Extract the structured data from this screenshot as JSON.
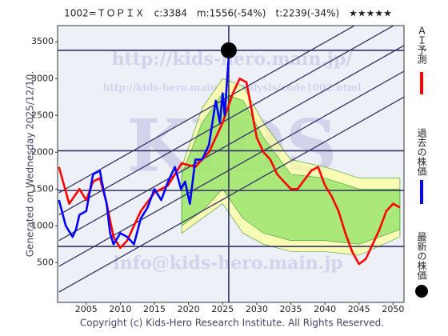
{
  "chart_data": {
    "type": "line",
    "title": "1002=ＴＯＰＩＸ　c:3384　m:1556(-54%)　t:2239(-34%)　★★★★★",
    "subtitle": "Generated on Wednesday 2025/12/10.",
    "footer": "Copyright (c) Kids-Hero Research Institute. All Rights Reserved.",
    "watermarks": [
      "http://kids-hero.main.jp/",
      "http://kids-hero.main.jp/analysis/code1002.html",
      "info@kids-hero.main.jp",
      "KIDS"
    ],
    "xlim": [
      2000.8,
      2051.6
    ],
    "ylim": [
      -40,
      3720
    ],
    "xticks": [
      2005,
      2010,
      2015,
      2020,
      2025,
      2030,
      2035,
      2040,
      2045,
      2050
    ],
    "yticks": [
      500,
      1000,
      1500,
      2000,
      2500,
      3000,
      3500
    ],
    "series": [
      {
        "name": "ＡＩ予測",
        "color": "#ff0000",
        "x": [
          2001,
          2002.5,
          2004,
          2005,
          2006,
          2007,
          2008,
          2009,
          2010,
          2011,
          2012,
          2013,
          2015,
          2017,
          2019,
          2021,
          2023,
          2025,
          2026.5,
          2027.5,
          2028.5,
          2030,
          2031,
          2032,
          2033,
          2035,
          2036,
          2038,
          2039,
          2040,
          2041,
          2042,
          2043,
          2044,
          2045,
          2046,
          2047,
          2048,
          2049,
          2050,
          2051
        ],
        "values": [
          1800,
          1300,
          1500,
          1350,
          1600,
          1650,
          1300,
          850,
          700,
          800,
          1000,
          1200,
          1450,
          1550,
          1850,
          1800,
          2000,
          2400,
          2800,
          3000,
          2950,
          2200,
          2000,
          1900,
          1700,
          1500,
          1500,
          1750,
          1800,
          1550,
          1400,
          1200,
          900,
          650,
          480,
          550,
          750,
          950,
          1200,
          1300,
          1250
        ]
      },
      {
        "name": "過去の株価",
        "color": "#0000ff",
        "x": [
          2001,
          2002,
          2003,
          2003.5,
          2004,
          2005,
          2006,
          2007,
          2007.5,
          2008,
          2008.5,
          2009,
          2010,
          2011,
          2012,
          2013,
          2014,
          2015,
          2016,
          2017,
          2018,
          2018.9,
          2019.5,
          2020.2,
          2021,
          2022,
          2023,
          2024,
          2024.6,
          2025,
          2025.3,
          2025.9
        ],
        "values": [
          1350,
          1000,
          850,
          950,
          1150,
          1200,
          1700,
          1750,
          1500,
          1300,
          900,
          750,
          900,
          850,
          750,
          1100,
          1250,
          1500,
          1350,
          1600,
          1800,
          1500,
          1600,
          1300,
          1900,
          1900,
          2100,
          2700,
          2400,
          2800,
          2500,
          3300
        ]
      }
    ],
    "latest": {
      "name": "最新の株価",
      "x": 2025.9,
      "y": 3384,
      "color": "#000000"
    },
    "bands": [
      {
        "color": "#ffff99",
        "x": [
          2019,
          2022,
          2025,
          2028,
          2031,
          2035,
          2040,
          2045,
          2051
        ],
        "upper": [
          1800,
          2600,
          3000,
          2900,
          2400,
          1900,
          1800,
          1650,
          1650
        ],
        "lower": [
          900,
          1100,
          1300,
          900,
          750,
          650,
          650,
          600,
          850
        ]
      },
      {
        "color": "#88e060",
        "x": [
          2019,
          2022,
          2025,
          2028,
          2031,
          2035,
          2040,
          2045,
          2051
        ],
        "upper": [
          1700,
          2400,
          2800,
          2700,
          2200,
          1700,
          1650,
          1500,
          1500
        ],
        "lower": [
          1000,
          1200,
          1500,
          1100,
          900,
          800,
          800,
          750,
          950
        ]
      }
    ],
    "hlines": [
      3384,
      2020,
      1480,
      720
    ],
    "trend_lines": [
      {
        "x": [
          2001,
          2051.6
        ],
        "y": [
          1450,
          4100
        ]
      },
      {
        "x": [
          2001,
          2051.6
        ],
        "y": [
          1150,
          3800
        ]
      },
      {
        "x": [
          2001,
          2051.6
        ],
        "y": [
          800,
          3450
        ]
      },
      {
        "x": [
          2001,
          2051.6
        ],
        "y": [
          450,
          3100
        ]
      },
      {
        "x": [
          2001,
          2051.6
        ],
        "y": [
          100,
          2750
        ]
      }
    ]
  }
}
